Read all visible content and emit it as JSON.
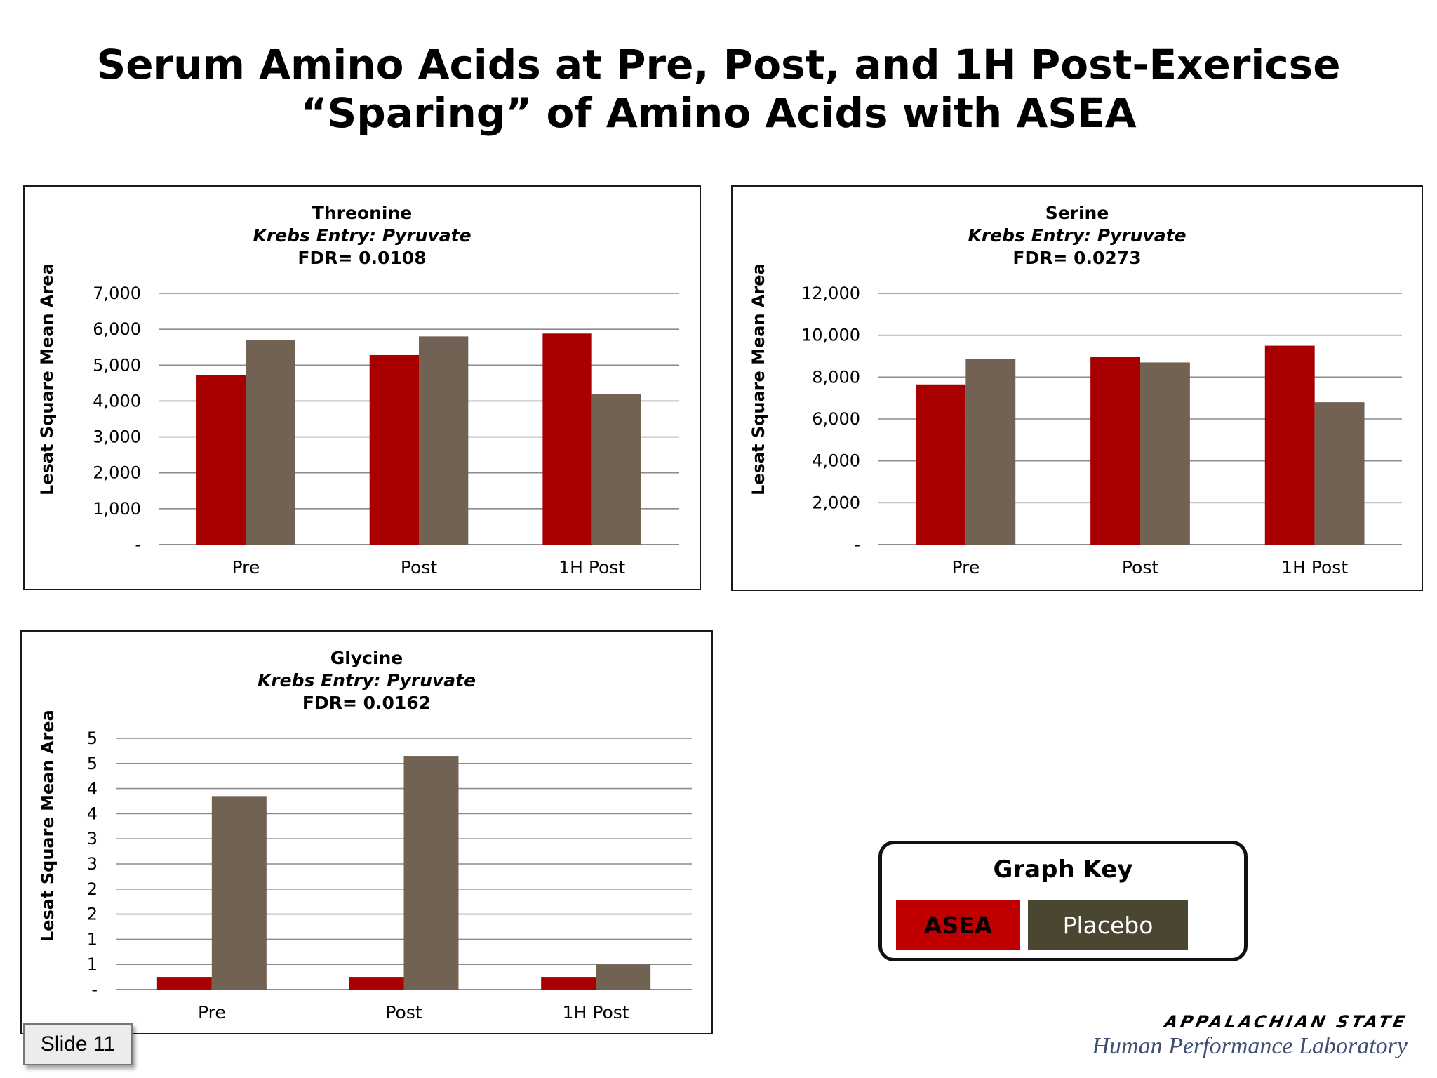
{
  "page": {
    "title_line1": "Serum Amino Acids at Pre, Post, and 1H Post-Exericse",
    "title_line2": "“Sparing” of Amino Acids with ASEA",
    "slide_label": "Slide 11",
    "brand_name": "APPALACHIAN STATE",
    "brand_lab": "Human Performance Laboratory"
  },
  "legend": {
    "title": "Graph Key",
    "asea_label": "ASEA",
    "placebo_label": "Placebo"
  },
  "colors": {
    "asea": "#a80000",
    "placebo": "#726254",
    "key_asea": "#c00000",
    "key_placebo": "#4a4631",
    "grid": "#8c8c8c"
  },
  "chart_data": [
    {
      "type": "bar",
      "title": "Threonine",
      "subtitle": "Krebs Entry: Pyruvate",
      "fdr": "FDR= 0.0108",
      "ylabel": "Lesat Square Mean Area",
      "xlabel": "",
      "categories": [
        "Pre",
        "Post",
        "1H Post"
      ],
      "ylim": [
        0,
        7000
      ],
      "yticks": [
        "-",
        "1,000",
        "2,000",
        "3,000",
        "4,000",
        "5,000",
        "6,000",
        "7,000"
      ],
      "grid": true,
      "series": [
        {
          "name": "ASEA",
          "values": [
            4720,
            5280,
            5880
          ]
        },
        {
          "name": "Placebo",
          "values": [
            5700,
            5800,
            4200
          ]
        }
      ]
    },
    {
      "type": "bar",
      "title": "Serine",
      "subtitle": "Krebs Entry: Pyruvate",
      "fdr": "FDR= 0.0273",
      "ylabel": "Lesat Square Mean Area",
      "xlabel": "",
      "categories": [
        "Pre",
        "Post",
        "1H Post"
      ],
      "ylim": [
        0,
        12000
      ],
      "yticks": [
        "-",
        "2,000",
        "4,000",
        "6,000",
        "8,000",
        "10,000",
        "12,000"
      ],
      "grid": true,
      "series": [
        {
          "name": "ASEA",
          "values": [
            7650,
            8950,
            9500
          ]
        },
        {
          "name": "Placebo",
          "values": [
            8850,
            8700,
            6800
          ]
        }
      ]
    },
    {
      "type": "bar",
      "title": "Glycine",
      "subtitle": "Krebs Entry: Pyruvate",
      "fdr": "FDR= 0.0162",
      "ylabel": "Lesat Square Mean Area",
      "xlabel": "",
      "categories": [
        "Pre",
        "Post",
        "1H Post"
      ],
      "ylim": [
        0,
        5
      ],
      "yticks": [
        "-",
        "1",
        "1",
        "2",
        "2",
        "3",
        "3",
        "4",
        "4",
        "5",
        "5"
      ],
      "grid": true,
      "series": [
        {
          "name": "ASEA",
          "values": [
            0.25,
            0.25,
            0.25
          ]
        },
        {
          "name": "Placebo",
          "values": [
            3.85,
            4.65,
            0.5
          ]
        }
      ]
    }
  ]
}
